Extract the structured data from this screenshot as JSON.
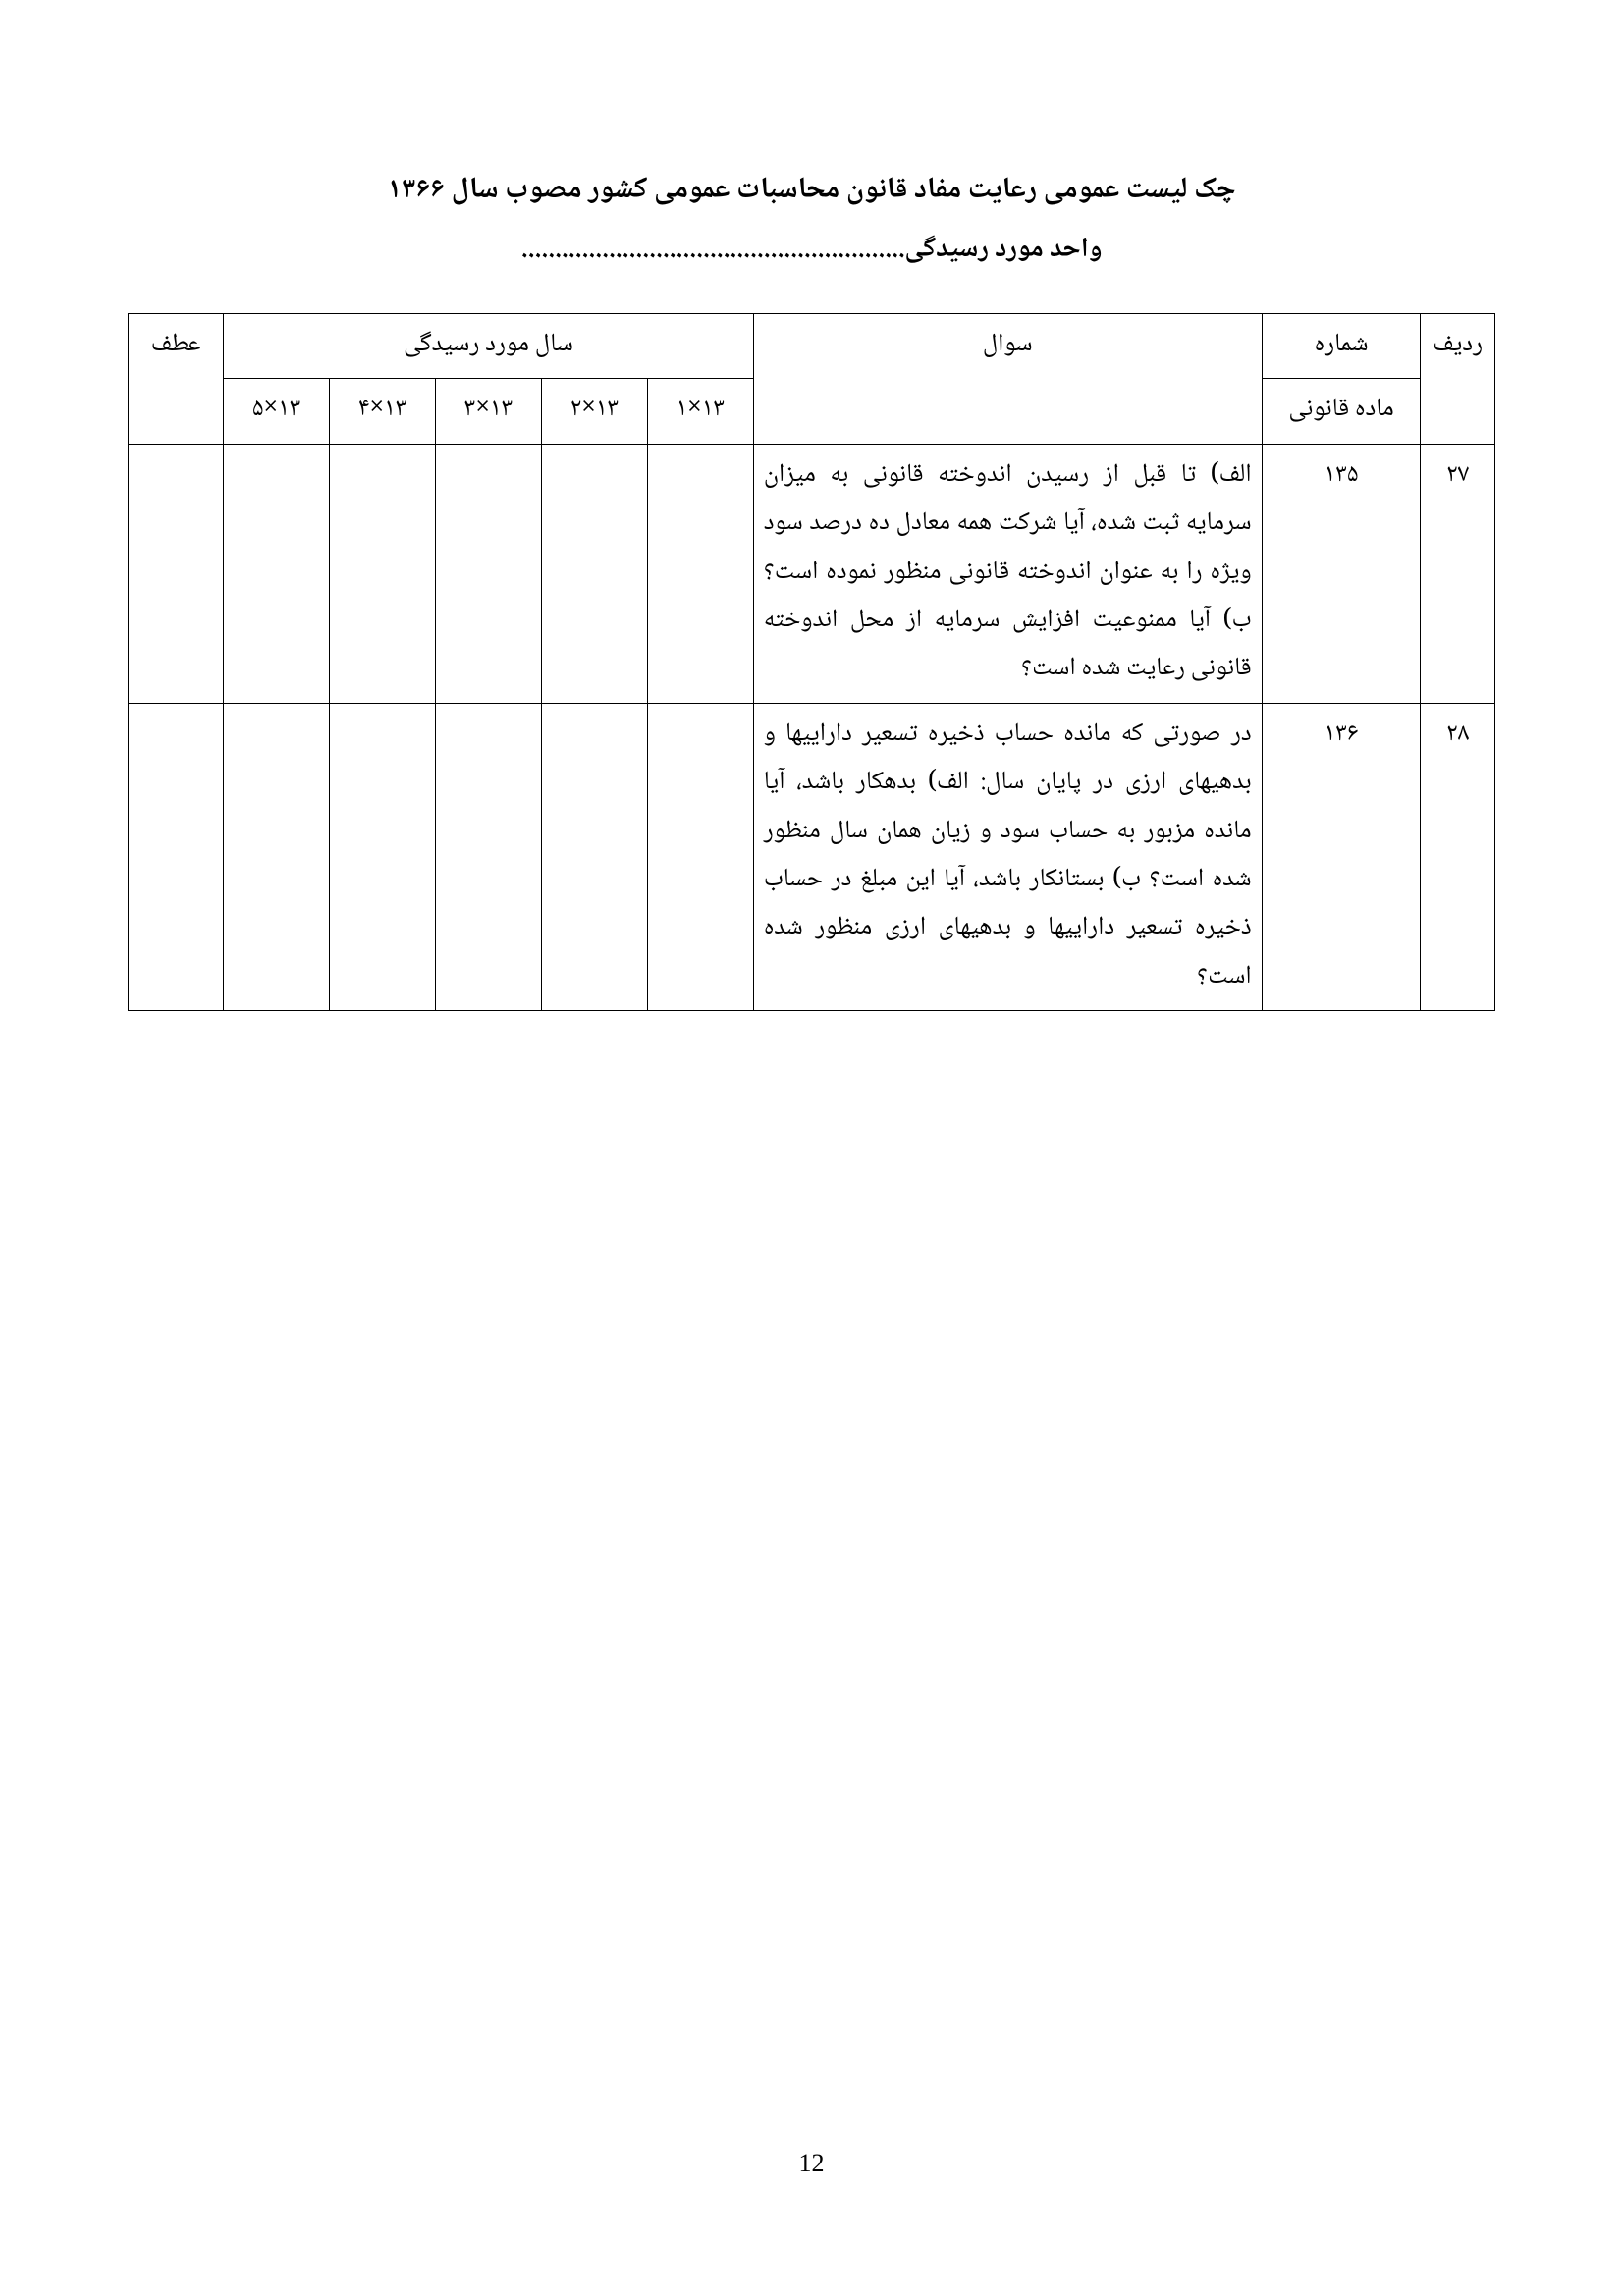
{
  "title": "چک لیست عمومی رعایت مفاد قانون محاسبات عمومی کشور مصوب سال ۱۳۶۶",
  "subtitle": "واحد مورد رسیدگی.........................................................",
  "headers": {
    "radif": "ردیف",
    "madeh_top": "شماره",
    "madeh_sub": "ماده قانونی",
    "soal": "سوال",
    "years_group": "سال مورد رسیدگی",
    "atf": "عطف",
    "y1": "۱۳×۱",
    "y2": "۱۳×۲",
    "y3": "۱۳×۳",
    "y4": "۱۳×۴",
    "y5": "۱۳×۵"
  },
  "rows": [
    {
      "radif": "۲۷",
      "madeh": "۱۳۵",
      "soal": "الف) تا قبل از رسیدن اندوخته قانونی به میزان سرمایه ثبت شده، آیا شرکت همه معادل ده درصد سود ویژه را به عنوان اندوخته قانونی منظور نموده است؟\nب) آیا ممنوعیت افزایش سرمایه از محل اندوخته قانونی رعایت شده است؟",
      "y1": "",
      "y2": "",
      "y3": "",
      "y4": "",
      "y5": "",
      "atf": ""
    },
    {
      "radif": "۲۸",
      "madeh": "۱۳۶",
      "soal": "در صورتی که مانده حساب ذخیره تسعیر داراییها و بدهیهای ارزی در پایان سال:\nالف) بدهکار باشد، آیا مانده مزبور به حساب سود و زیان همان سال منظور شده است؟\nب) بستانکار باشد، آیا این مبلغ در حساب ذخیره تسعیر داراییها و بدهیهای ارزی منظور شده است؟",
      "y1": "",
      "y2": "",
      "y3": "",
      "y4": "",
      "y5": "",
      "atf": ""
    }
  ],
  "page_number": "12"
}
